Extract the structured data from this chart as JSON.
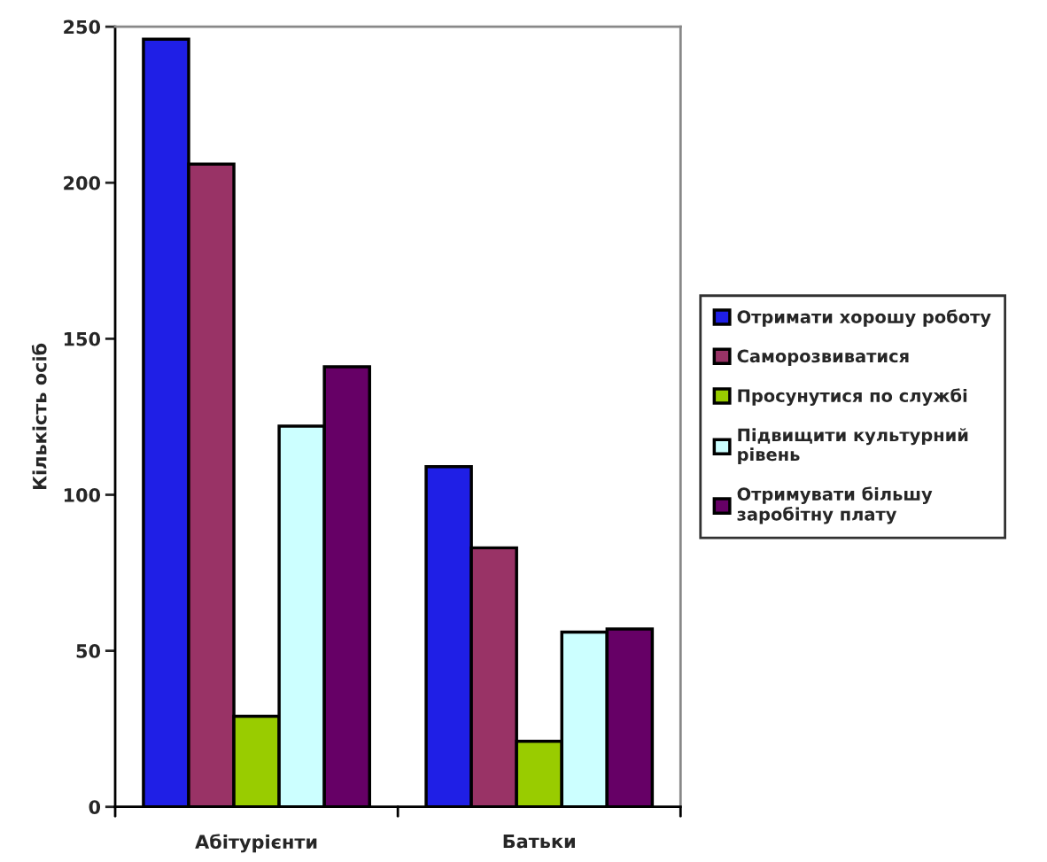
{
  "chart_data": {
    "type": "bar",
    "ylabel": "Кількість осіб",
    "categories": [
      "Абітурієнти",
      "Батьки"
    ],
    "series": [
      {
        "name": "Отримати хорошу роботу",
        "color": "#1f1fe6",
        "values": [
          246,
          109
        ]
      },
      {
        "name": "Саморозвиватися",
        "color": "#993366",
        "values": [
          206,
          83
        ]
      },
      {
        "name": "Просунутися по службі",
        "color": "#99cc00",
        "values": [
          29,
          21
        ]
      },
      {
        "name": "Підвищити культурний\nрівень",
        "color": "#ccffff",
        "values": [
          122,
          56
        ]
      },
      {
        "name": "Отримувати більшу\nзаробітну плату",
        "color": "#660066",
        "values": [
          141,
          57
        ]
      }
    ],
    "ylim": [
      0,
      250
    ],
    "yticks": [
      0,
      50,
      100,
      150,
      200,
      250
    ],
    "grid": false,
    "legend": "right"
  }
}
